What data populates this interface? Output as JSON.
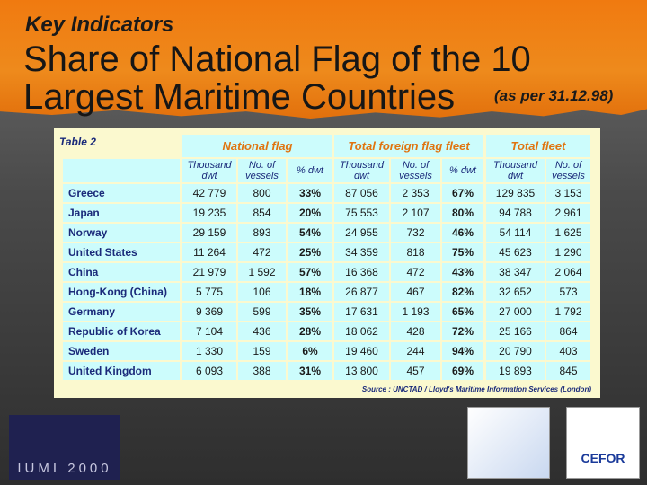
{
  "header": {
    "kicker": "Key Indicators",
    "title_line1": "Share of National Flag of the 10",
    "title_line2": "Largest Maritime Countries",
    "note": "(as per 31.12.98)"
  },
  "table": {
    "label": "Table 2",
    "groups": [
      "National flag",
      "Total foreign flag fleet",
      "Total fleet"
    ],
    "subheaders": [
      "Thousand dwt",
      "No. of vessels",
      "% dwt",
      "Thousand dwt",
      "No. of vessels",
      "% dwt",
      "Thousand dwt",
      "No. of vessels"
    ],
    "rows": [
      [
        "Greece",
        "42 779",
        "800",
        "33%",
        "87 056",
        "2 353",
        "67%",
        "129 835",
        "3 153"
      ],
      [
        "Japan",
        "19 235",
        "854",
        "20%",
        "75 553",
        "2 107",
        "80%",
        "94 788",
        "2 961"
      ],
      [
        "Norway",
        "29 159",
        "893",
        "54%",
        "24 955",
        "732",
        "46%",
        "54 114",
        "1 625"
      ],
      [
        "United States",
        "11 264",
        "472",
        "25%",
        "34 359",
        "818",
        "75%",
        "45 623",
        "1 290"
      ],
      [
        "China",
        "21 979",
        "1 592",
        "57%",
        "16 368",
        "472",
        "43%",
        "38 347",
        "2 064"
      ],
      [
        "Hong-Kong (China)",
        "5 775",
        "106",
        "18%",
        "26 877",
        "467",
        "82%",
        "32 652",
        "573"
      ],
      [
        "Germany",
        "9 369",
        "599",
        "35%",
        "17 631",
        "1 193",
        "65%",
        "27 000",
        "1 792"
      ],
      [
        "Republic of Korea",
        "7 104",
        "436",
        "28%",
        "18 062",
        "428",
        "72%",
        "25 166",
        "864"
      ],
      [
        "Sweden",
        "1 330",
        "159",
        "6%",
        "19 460",
        "244",
        "94%",
        "20 790",
        "403"
      ],
      [
        "United Kingdom",
        "6 093",
        "388",
        "31%",
        "13 800",
        "457",
        "69%",
        "19 893",
        "845"
      ]
    ],
    "source": "Source : UNCTAD / Lloyd's Maritime Information Services (London)"
  },
  "footer": {
    "logo_left": "IUMI 2000",
    "logo_right": "CEFOR"
  }
}
